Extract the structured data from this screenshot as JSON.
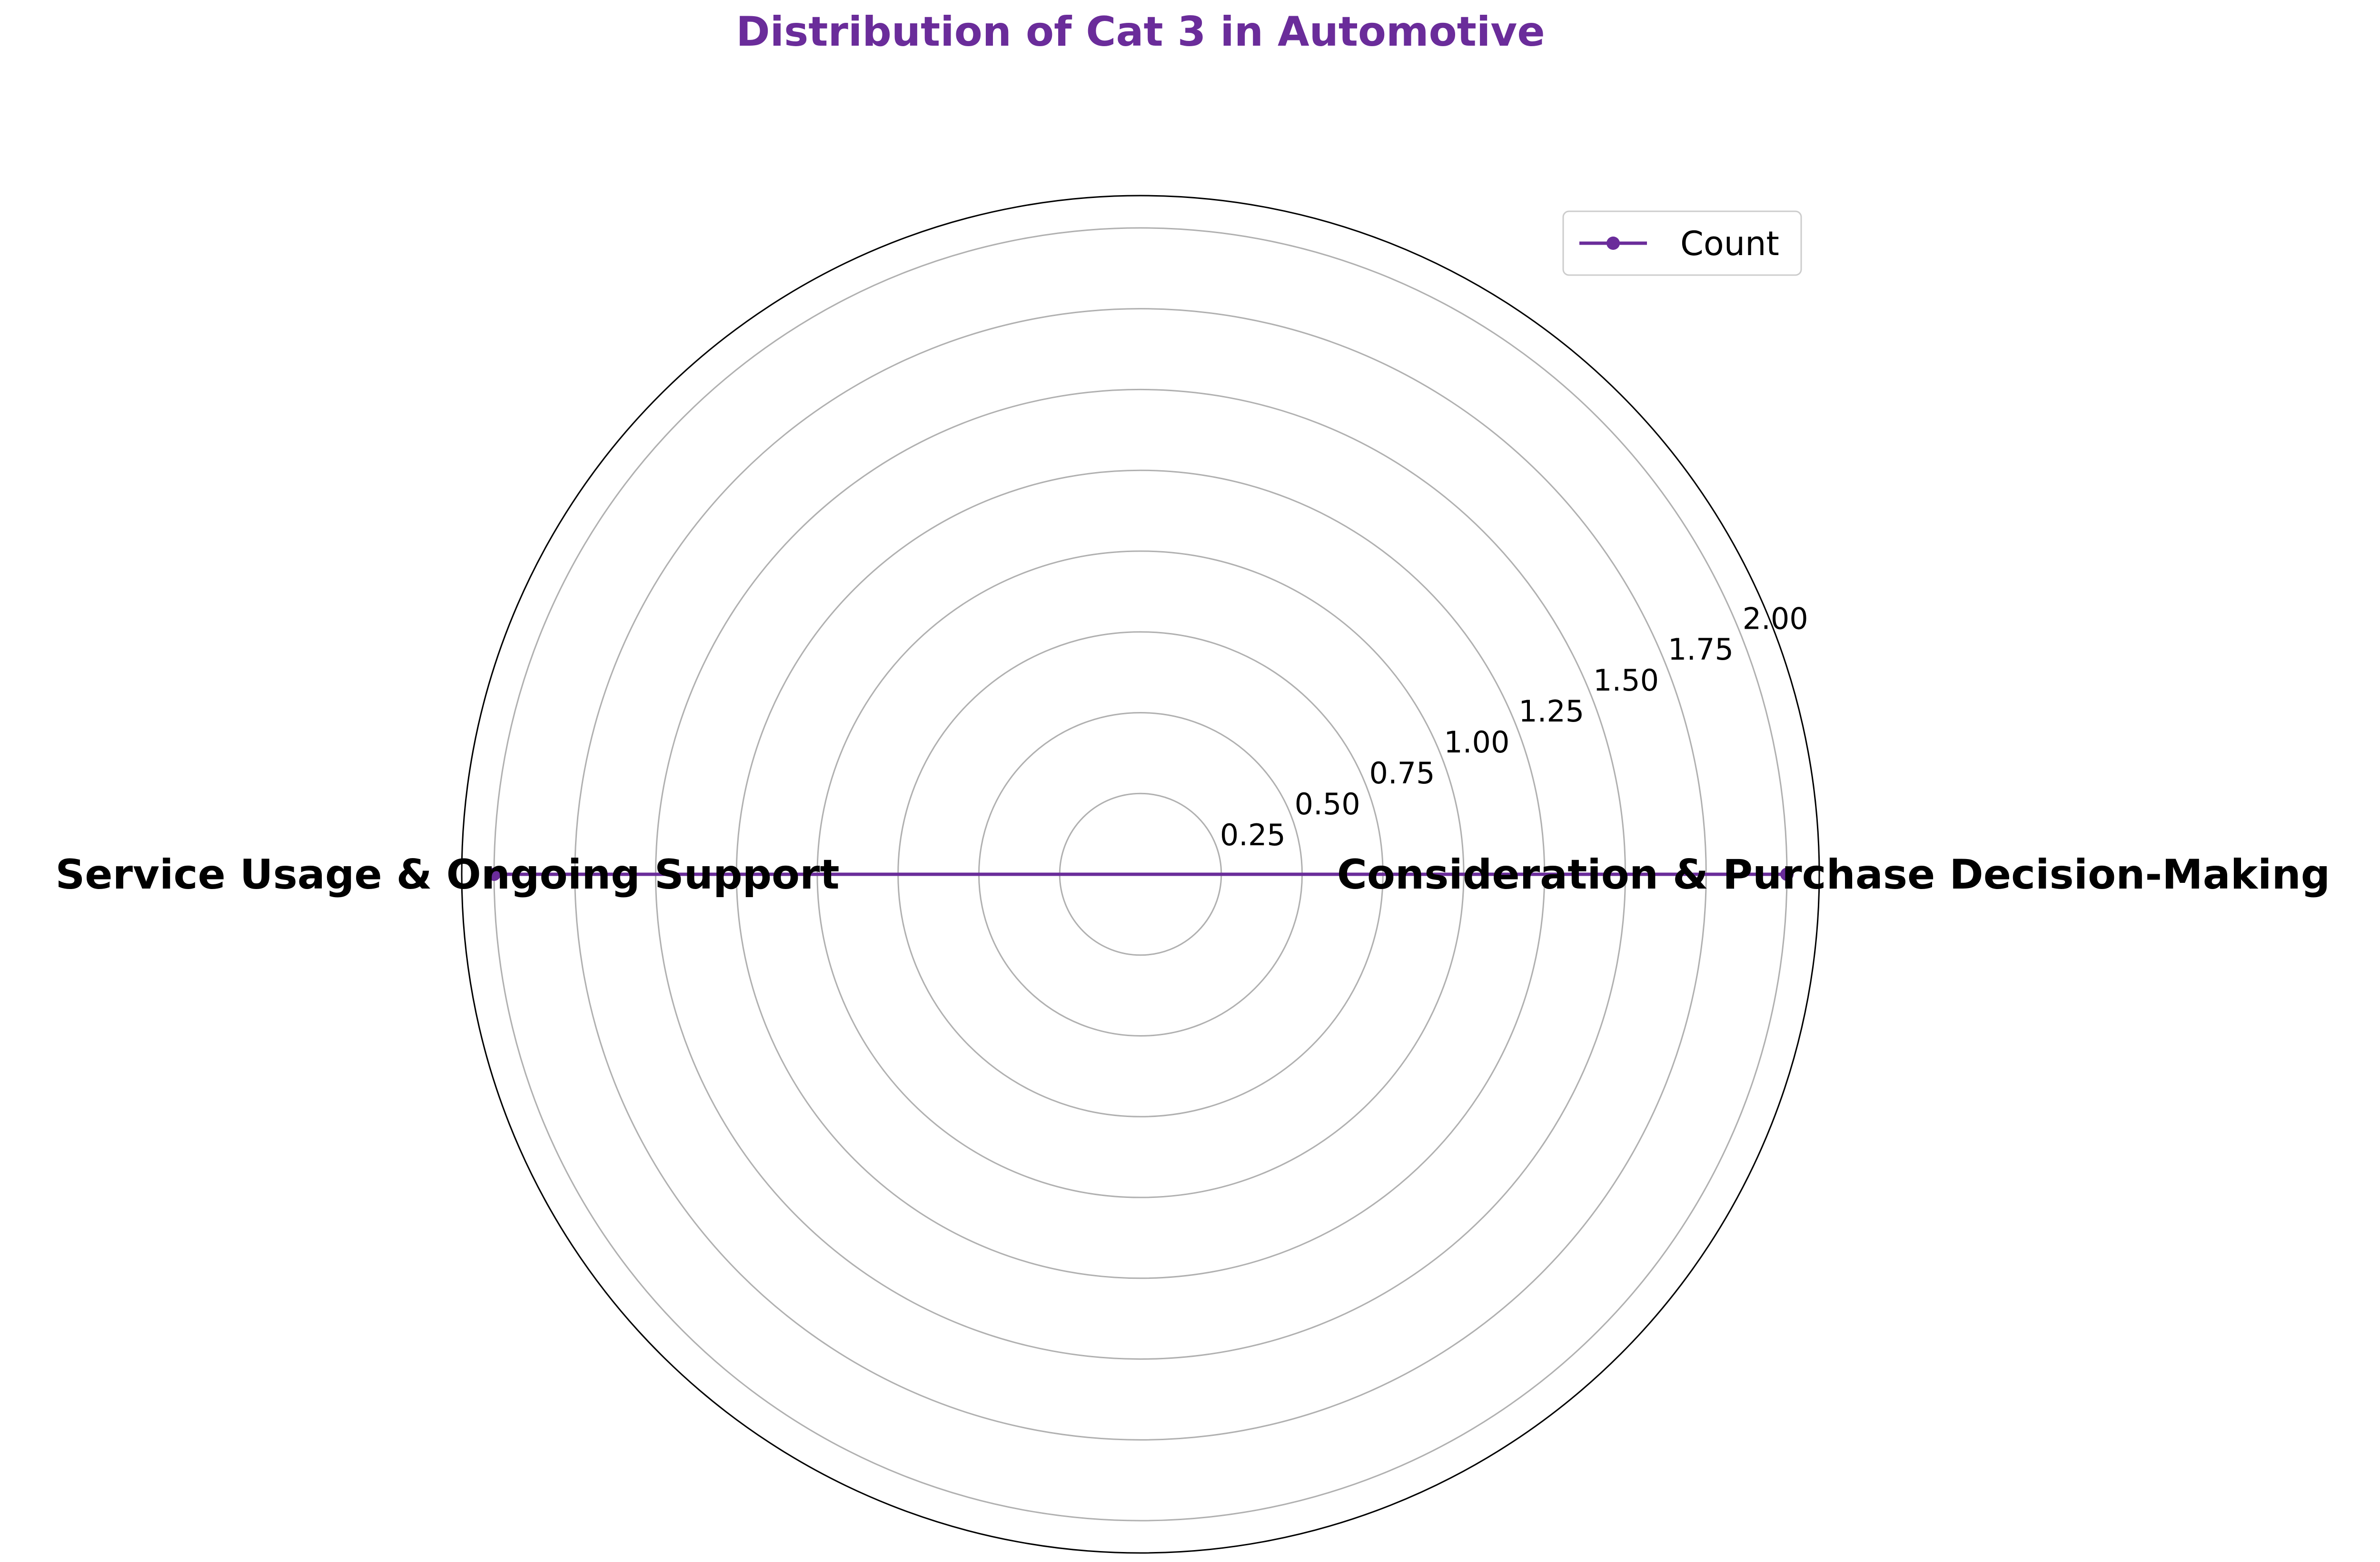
{
  "chart_data": {
    "type": "radar",
    "title": "Distribution of Cat 3 in Automotive",
    "categories": [
      "Consideration & Purchase Decision-Making",
      "Service Usage & Ongoing Support"
    ],
    "series": [
      {
        "name": "Count",
        "values": [
          2,
          2
        ]
      }
    ],
    "rlim": [
      0,
      2.1
    ],
    "r_ticks": [
      0.25,
      0.5,
      0.75,
      1.0,
      1.25,
      1.5,
      1.75,
      2.0
    ],
    "r_tick_labels": [
      "0.25",
      "0.50",
      "0.75",
      "1.00",
      "1.25",
      "1.50",
      "1.75",
      "2.00"
    ],
    "grid": true,
    "legend_position": "top-right",
    "colors": {
      "series": "#6a2c9a",
      "title": "#6a2c9a",
      "grid": "#b0b0b0",
      "frame": "#000000"
    }
  }
}
